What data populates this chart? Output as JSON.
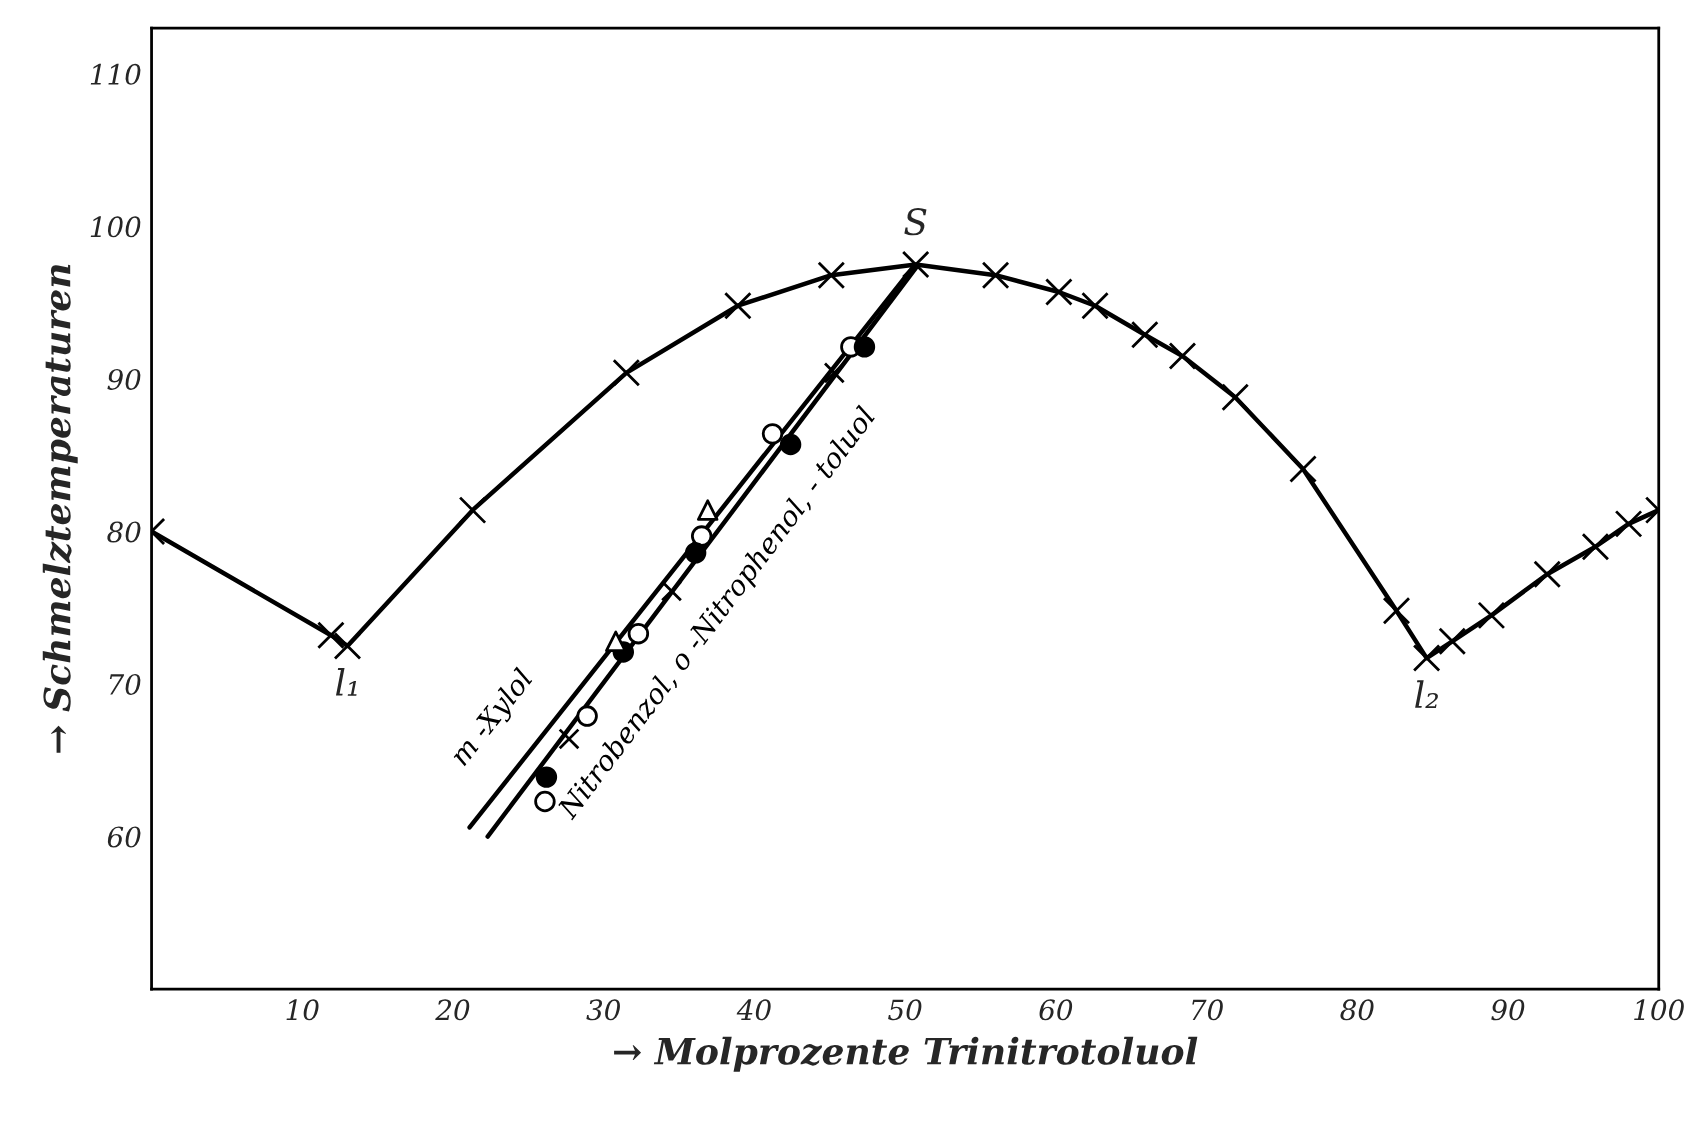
{
  "chart_data": {
    "type": "line",
    "xlabel": "→ Molprozente Trinitrotoluol",
    "ylabel": "→ Schmelztemperaturen",
    "xlim": [
      0,
      100
    ],
    "ylim": [
      50,
      113
    ],
    "xticks": [
      10,
      20,
      30,
      40,
      50,
      60,
      70,
      80,
      90,
      100
    ],
    "yticks": [
      60,
      70,
      80,
      90,
      100,
      110
    ],
    "grid": false,
    "legend": false,
    "line_style": "solid",
    "series": [
      {
        "color": "#000000",
        "marker": "cross",
        "x": [
          0,
          11.9,
          13.0,
          21.3,
          31.5,
          38.9,
          45.1,
          50.7,
          56.0,
          60.2,
          62.6,
          65.9,
          68.4,
          71.9,
          76.4,
          82.6,
          84.6,
          86.3,
          88.9,
          92.6,
          95.8,
          98.0,
          100
        ],
        "values": [
          80,
          73.2,
          72.5,
          81.4,
          90.4,
          94.8,
          96.8,
          97.5,
          96.8,
          95.7,
          94.8,
          92.9,
          91.5,
          88.8,
          84.1,
          74.8,
          71.7,
          72.8,
          74.5,
          77.2,
          79.0,
          80.5,
          81.4
        ]
      },
      {
        "type": "line",
        "name": "m -Xylol",
        "color": "#000000",
        "marker": "none",
        "x": [
          21.1,
          50.5
        ],
        "values": [
          60.6,
          97.3
        ]
      },
      {
        "type": "line",
        "name": "Nitrobenzol, o -Nitrophenol, - toluol",
        "color": "#000000",
        "marker": "none",
        "x": [
          22.3,
          50.8
        ],
        "values": [
          60.0,
          97.4
        ]
      },
      {
        "type": "scatter",
        "color": "#ffffff",
        "marker": "circle",
        "x": [
          26.1,
          28.9,
          32.3,
          36.5,
          41.2,
          46.4
        ],
        "values": [
          62.3,
          67.9,
          73.3,
          79.7,
          86.4,
          92.1
        ]
      },
      {
        "type": "scatter",
        "color": "#000000",
        "marker": "circle",
        "x": [
          26.2,
          31.3,
          36.1,
          42.4,
          47.3
        ],
        "values": [
          63.9,
          72.1,
          78.6,
          85.7,
          92.1
        ]
      },
      {
        "type": "scatter",
        "color": "#000000",
        "marker": "cross",
        "x": [
          27.7,
          34.5,
          45.3
        ],
        "values": [
          66.4,
          76.1,
          90.4
        ]
      },
      {
        "type": "scatter",
        "color": "#ffffff",
        "marker": "triangle",
        "x": [
          30.8,
          36.9
        ],
        "values": [
          72.8,
          81.4
        ]
      }
    ],
    "annotations": [
      {
        "text": "l₁",
        "x": 13.0,
        "y": 72.5
      },
      {
        "text": "S",
        "x": 50.7,
        "y": 97.5
      },
      {
        "text": "l₂",
        "x": 84.6,
        "y": 71.7
      }
    ]
  }
}
